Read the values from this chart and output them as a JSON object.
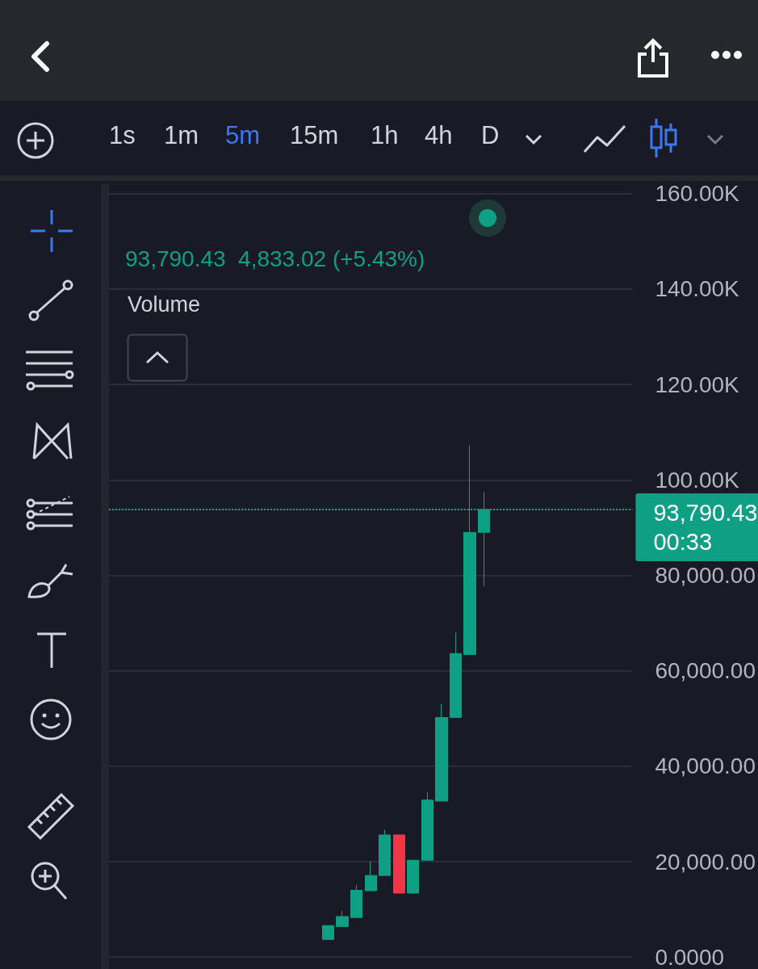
{
  "chart_data": {
    "type": "candlestick",
    "categories": [
      null,
      null,
      null,
      null,
      null,
      null,
      null,
      null,
      null,
      null,
      null,
      null,
      null,
      null,
      null,
      null,
      null,
      null,
      null,
      null,
      null,
      null,
      null,
      null,
      null,
      null,
      null,
      null,
      null,
      null,
      null,
      null,
      null,
      null,
      null,
      null,
      null
    ],
    "ohlc": [
      null,
      null,
      null,
      null,
      null,
      null,
      null,
      null,
      null,
      null,
      null,
      null,
      null,
      null,
      null,
      [
        3700,
        6600,
        3700,
        6600
      ],
      [
        6400,
        9700,
        6400,
        8500
      ],
      [
        8300,
        15100,
        8300,
        14000
      ],
      [
        13900,
        20000,
        13900,
        17100
      ],
      [
        17100,
        26700,
        17100,
        25600
      ],
      [
        25600,
        25600,
        13400,
        13400
      ],
      [
        13400,
        20300,
        13300,
        20300
      ],
      [
        20300,
        34600,
        20300,
        32900
      ],
      [
        32700,
        53000,
        32700,
        50200
      ],
      [
        50200,
        68000,
        50200,
        63600
      ],
      [
        63400,
        107200,
        63400,
        89000
      ],
      [
        89000,
        97500,
        77700,
        93790.43
      ],
      null,
      null,
      null,
      null,
      null,
      null,
      null,
      null,
      null,
      null
    ],
    "colors": [
      null,
      null,
      null,
      null,
      null,
      null,
      null,
      null,
      null,
      null,
      null,
      null,
      null,
      null,
      null,
      "#0e9f85",
      "#0e9f85",
      "#0e9f85",
      "#0e9f85",
      "#0e9f85",
      "#f23645",
      "#0e9f85",
      "#0e9f85",
      "#0e9f85",
      "#0e9f85",
      "#0e9f85",
      "#0e9f85",
      null,
      null,
      null,
      null,
      null,
      null,
      null,
      null,
      null,
      null
    ],
    "ylim": [
      -2500,
      162500
    ],
    "yticks": [
      {
        "value": 0,
        "label": "0.0000"
      },
      {
        "value": 20000,
        "label": "20,000.00"
      },
      {
        "value": 40000,
        "label": "40,000.00"
      },
      {
        "value": 60000,
        "label": "60,000.00"
      },
      {
        "value": 80000,
        "label": "80,000.00"
      },
      {
        "value": 100000,
        "label": "100.00K"
      },
      {
        "value": 120000,
        "label": "120.00K"
      },
      {
        "value": 140000,
        "label": "140.00K"
      },
      {
        "value": 160000,
        "label": "160.00K"
      }
    ],
    "grid": "y",
    "tick_labels": "y",
    "ref_lines": [
      {
        "axis": "y",
        "value": 93790.43,
        "label": "93,790.43\n00:33",
        "color": "#0e9f85",
        "line_style": "dotted"
      }
    ],
    "annotations": [
      "93,790.43  4,833.02 (+5.43%)",
      "Volume",
      "1s",
      "1m",
      "5m",
      "15m",
      "1h",
      "4h",
      "D"
    ]
  }
}
